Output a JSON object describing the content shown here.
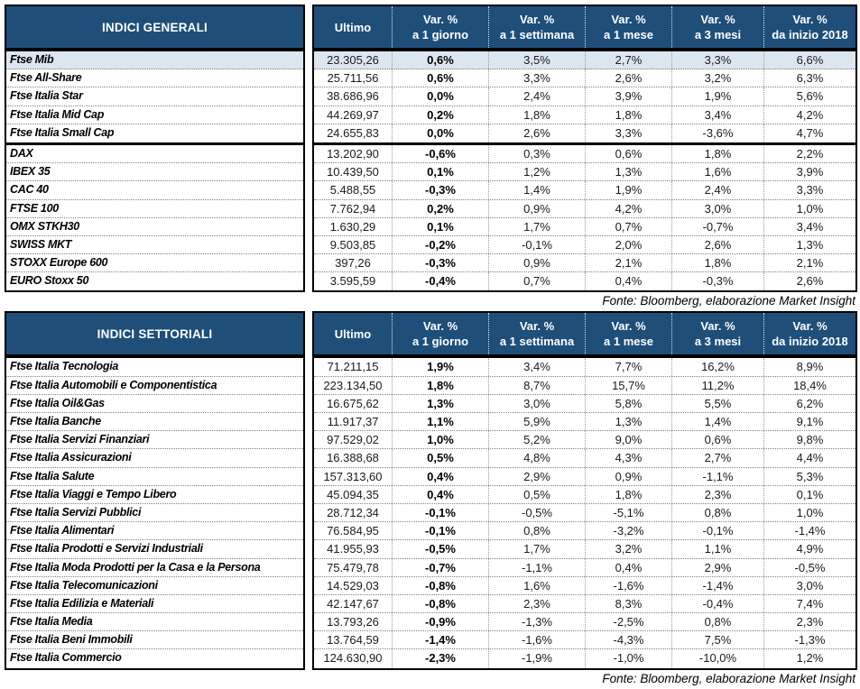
{
  "colors": {
    "header_bg": "#1F4E79",
    "highlight_bg": "#DCE6F1"
  },
  "tables": [
    {
      "title": "INDICI GENERALI",
      "columns": [
        {
          "label": "Ultimo",
          "sub": ""
        },
        {
          "label": "Var. %",
          "sub": "a 1 giorno"
        },
        {
          "label": "Var. %",
          "sub": "a 1 settimana"
        },
        {
          "label": "Var. %",
          "sub": "a 1 mese"
        },
        {
          "label": "Var. %",
          "sub": "a 3 mesi"
        },
        {
          "label": "Var. %",
          "sub": "da inizio 2018"
        }
      ],
      "groups": [
        [
          {
            "highlight": true,
            "cells": [
              "Ftse Mib",
              "23.305,26",
              "0,6%",
              "3,5%",
              "2,7%",
              "3,3%",
              "6,6%"
            ]
          },
          {
            "highlight": false,
            "cells": [
              "Ftse All-Share",
              "25.711,56",
              "0,6%",
              "3,3%",
              "2,6%",
              "3,2%",
              "6,3%"
            ]
          },
          {
            "highlight": false,
            "cells": [
              "Ftse Italia Star",
              "38.686,96",
              "0,0%",
              "2,4%",
              "3,9%",
              "1,9%",
              "5,6%"
            ]
          },
          {
            "highlight": false,
            "cells": [
              "Ftse Italia Mid Cap",
              "44.269,97",
              "0,2%",
              "1,8%",
              "1,8%",
              "3,4%",
              "4,2%"
            ]
          },
          {
            "highlight": false,
            "cells": [
              "Ftse Italia Small Cap",
              "24.655,83",
              "0,0%",
              "2,6%",
              "3,3%",
              "-3,6%",
              "4,7%"
            ]
          }
        ],
        [
          {
            "highlight": false,
            "cells": [
              "DAX",
              "13.202,90",
              "-0,6%",
              "0,3%",
              "0,6%",
              "1,8%",
              "2,2%"
            ]
          },
          {
            "highlight": false,
            "cells": [
              "IBEX 35",
              "10.439,50",
              "0,1%",
              "1,2%",
              "1,3%",
              "1,6%",
              "3,9%"
            ]
          },
          {
            "highlight": false,
            "cells": [
              "CAC 40",
              "5.488,55",
              "-0,3%",
              "1,4%",
              "1,9%",
              "2,4%",
              "3,3%"
            ]
          },
          {
            "highlight": false,
            "cells": [
              "FTSE 100",
              "7.762,94",
              "0,2%",
              "0,9%",
              "4,2%",
              "3,0%",
              "1,0%"
            ]
          },
          {
            "highlight": false,
            "cells": [
              "OMX STKH30",
              "1.630,29",
              "0,1%",
              "1,7%",
              "0,7%",
              "-0,7%",
              "3,4%"
            ]
          },
          {
            "highlight": false,
            "cells": [
              "SWISS MKT",
              "9.503,85",
              "-0,2%",
              "-0,1%",
              "2,0%",
              "2,6%",
              "1,3%"
            ]
          },
          {
            "highlight": false,
            "cells": [
              "STOXX Europe 600",
              "397,26",
              "-0,3%",
              "0,9%",
              "2,1%",
              "1,8%",
              "2,1%"
            ]
          },
          {
            "highlight": false,
            "cells": [
              "EURO Stoxx 50",
              "3.595,59",
              "-0,4%",
              "0,7%",
              "0,4%",
              "-0,3%",
              "2,6%"
            ]
          }
        ]
      ],
      "fonte": "Fonte: Bloomberg, elaborazione Market Insight"
    },
    {
      "title": "INDICI SETTORIALI",
      "columns": [
        {
          "label": "Ultimo",
          "sub": ""
        },
        {
          "label": "Var. %",
          "sub": "a 1 giorno"
        },
        {
          "label": "Var. %",
          "sub": "a 1 settimana"
        },
        {
          "label": "Var. %",
          "sub": "a 1 mese"
        },
        {
          "label": "Var. %",
          "sub": "a 3 mesi"
        },
        {
          "label": "Var. %",
          "sub": "da inizio 2018"
        }
      ],
      "groups": [
        [
          {
            "highlight": false,
            "cells": [
              "Ftse Italia Tecnologia",
              "71.211,15",
              "1,9%",
              "3,4%",
              "7,7%",
              "16,2%",
              "8,9%"
            ]
          },
          {
            "highlight": false,
            "cells": [
              "Ftse Italia Automobili e Componentistica",
              "223.134,50",
              "1,8%",
              "8,7%",
              "15,7%",
              "11,2%",
              "18,4%"
            ]
          },
          {
            "highlight": false,
            "cells": [
              "Ftse Italia Oil&Gas",
              "16.675,62",
              "1,3%",
              "3,0%",
              "5,8%",
              "5,5%",
              "6,2%"
            ]
          },
          {
            "highlight": false,
            "cells": [
              "Ftse Italia Banche",
              "11.917,37",
              "1,1%",
              "5,9%",
              "1,3%",
              "1,4%",
              "9,1%"
            ]
          },
          {
            "highlight": false,
            "cells": [
              "Ftse Italia Servizi Finanziari",
              "97.529,02",
              "1,0%",
              "5,2%",
              "9,0%",
              "0,6%",
              "9,8%"
            ]
          },
          {
            "highlight": false,
            "cells": [
              "Ftse Italia Assicurazioni",
              "16.388,68",
              "0,5%",
              "4,8%",
              "4,3%",
              "2,7%",
              "4,4%"
            ]
          },
          {
            "highlight": false,
            "cells": [
              "Ftse Italia Salute",
              "157.313,60",
              "0,4%",
              "2,9%",
              "0,9%",
              "-1,1%",
              "5,3%"
            ]
          },
          {
            "highlight": false,
            "cells": [
              "Ftse Italia Viaggi e Tempo Libero",
              "45.094,35",
              "0,4%",
              "0,5%",
              "1,8%",
              "2,3%",
              "0,1%"
            ]
          },
          {
            "highlight": false,
            "cells": [
              "Ftse Italia Servizi Pubblici",
              "28.712,34",
              "-0,1%",
              "-0,5%",
              "-5,1%",
              "0,8%",
              "1,0%"
            ]
          },
          {
            "highlight": false,
            "cells": [
              "Ftse Italia Alimentari",
              "76.584,95",
              "-0,1%",
              "0,8%",
              "-3,2%",
              "-0,1%",
              "-1,4%"
            ]
          },
          {
            "highlight": false,
            "cells": [
              "Ftse Italia Prodotti e Servizi Industriali",
              "41.955,93",
              "-0,5%",
              "1,7%",
              "3,2%",
              "1,1%",
              "4,9%"
            ]
          },
          {
            "highlight": false,
            "cells": [
              "Ftse Italia Moda Prodotti per la Casa e la Persona",
              "75.479,78",
              "-0,7%",
              "-1,1%",
              "0,4%",
              "2,9%",
              "-0,5%"
            ]
          },
          {
            "highlight": false,
            "cells": [
              "Ftse Italia Telecomunicazioni",
              "14.529,03",
              "-0,8%",
              "1,6%",
              "-1,6%",
              "-1,4%",
              "3,0%"
            ]
          },
          {
            "highlight": false,
            "cells": [
              "Ftse Italia Edilizia e Materiali",
              "42.147,67",
              "-0,8%",
              "2,3%",
              "8,3%",
              "-0,4%",
              "7,4%"
            ]
          },
          {
            "highlight": false,
            "cells": [
              "Ftse Italia Media",
              "13.793,26",
              "-0,9%",
              "-1,3%",
              "-2,5%",
              "0,8%",
              "2,3%"
            ]
          },
          {
            "highlight": false,
            "cells": [
              "Ftse Italia Beni Immobili",
              "13.764,59",
              "-1,4%",
              "-1,6%",
              "-4,3%",
              "7,5%",
              "-1,3%"
            ]
          },
          {
            "highlight": false,
            "cells": [
              "Ftse Italia Commercio",
              "124.630,90",
              "-2,3%",
              "-1,9%",
              "-1,0%",
              "-10,0%",
              "1,2%"
            ]
          }
        ]
      ],
      "fonte": "Fonte: Bloomberg, elaborazione Market Insight"
    }
  ]
}
